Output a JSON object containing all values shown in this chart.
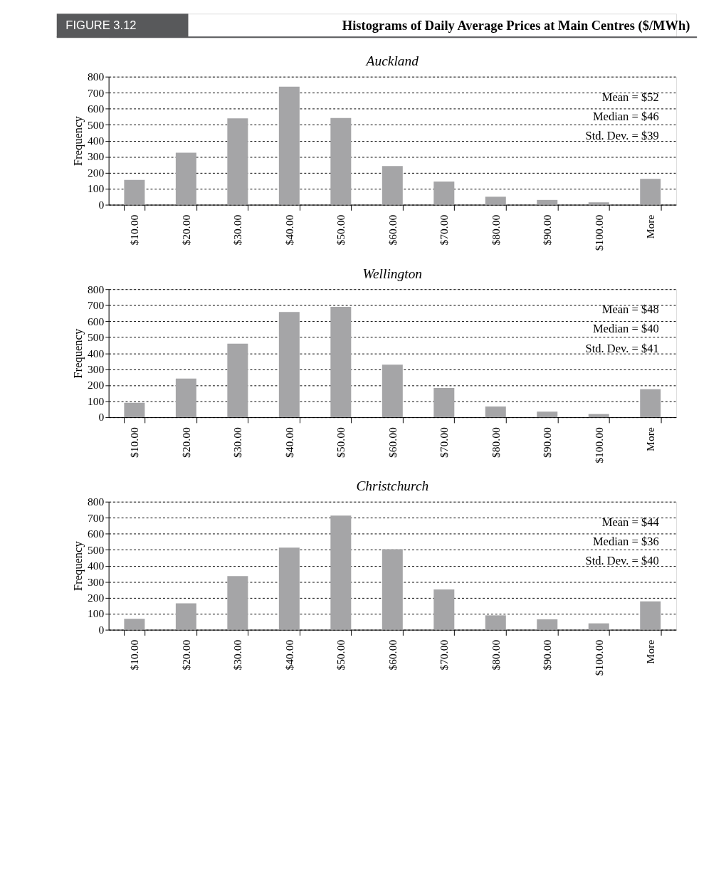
{
  "chart_data": [
    {
      "type": "other",
      "title": "Histograms of Daily Average Prices at Main Centres ($/MWh)",
      "annotations": [
        "FIGURE 3.12"
      ]
    },
    {
      "type": "bar",
      "title": "Auckland",
      "ylabel": "Frequency",
      "categories": [
        "$10.00",
        "$20.00",
        "$30.00",
        "$40.00",
        "$50.00",
        "$60.00",
        "$70.00",
        "$80.00",
        "$90.00",
        "$100.00",
        "More"
      ],
      "values": [
        155,
        325,
        540,
        738,
        542,
        242,
        145,
        50,
        30,
        15,
        162
      ],
      "color": "#a5a5a7",
      "ylim": [
        0,
        800
      ],
      "yticks": [
        0,
        100,
        200,
        300,
        400,
        500,
        600,
        700,
        800
      ],
      "grid": "y",
      "annotations": [
        "Mean = $52",
        "Median = $46",
        "Std. Dev. = $39"
      ]
    },
    {
      "type": "bar",
      "title": "Wellington",
      "ylabel": "Frequency",
      "categories": [
        "$10.00",
        "$20.00",
        "$30.00",
        "$40.00",
        "$50.00",
        "$60.00",
        "$70.00",
        "$80.00",
        "$90.00",
        "$100.00",
        "More"
      ],
      "values": [
        90,
        242,
        460,
        657,
        690,
        328,
        183,
        67,
        35,
        20,
        175
      ],
      "color": "#a5a5a7",
      "ylim": [
        0,
        800
      ],
      "yticks": [
        0,
        100,
        200,
        300,
        400,
        500,
        600,
        700,
        800
      ],
      "grid": "y",
      "annotations": [
        "Mean = $48",
        "Median = $40",
        "Std. Dev. = $41"
      ]
    },
    {
      "type": "bar",
      "title": "Christchurch",
      "ylabel": "Frequency",
      "categories": [
        "$10.00",
        "$20.00",
        "$30.00",
        "$40.00",
        "$50.00",
        "$60.00",
        "$70.00",
        "$80.00",
        "$90.00",
        "$100.00",
        "More"
      ],
      "values": [
        68,
        165,
        335,
        513,
        713,
        503,
        252,
        90,
        65,
        40,
        177
      ],
      "color": "#a5a5a7",
      "ylim": [
        0,
        800
      ],
      "yticks": [
        0,
        100,
        200,
        300,
        400,
        500,
        600,
        700,
        800
      ],
      "grid": "y",
      "annotations": [
        "Mean = $44",
        "Median = $36",
        "Std. Dev. = $40"
      ]
    }
  ]
}
